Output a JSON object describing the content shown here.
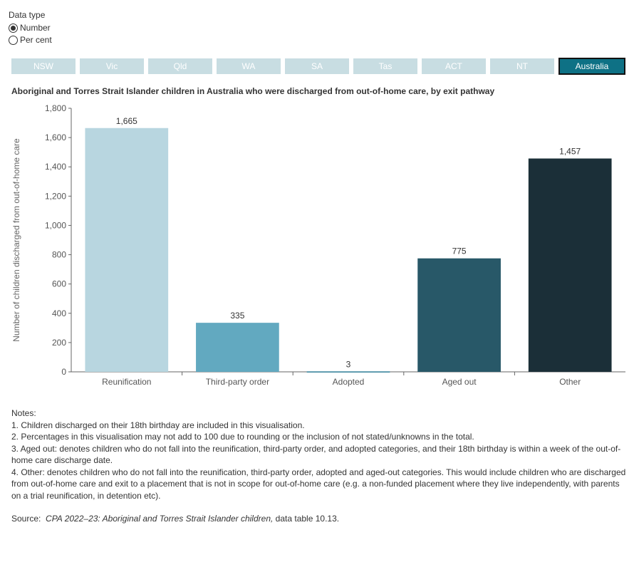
{
  "filters": {
    "label": "Data type",
    "options": [
      {
        "label": "Number",
        "selected": true
      },
      {
        "label": "Per cent",
        "selected": false
      }
    ]
  },
  "tabs": [
    {
      "label": "NSW"
    },
    {
      "label": "Vic"
    },
    {
      "label": "Qld"
    },
    {
      "label": "WA"
    },
    {
      "label": "SA"
    },
    {
      "label": "Tas"
    },
    {
      "label": "ACT"
    },
    {
      "label": "NT"
    },
    {
      "label": "Australia",
      "active": true
    }
  ],
  "colors": {
    "tab_inactive": "#c8dde2",
    "tab_active": "#0e7185"
  },
  "chart_data": {
    "type": "bar",
    "title": "Aboriginal and Torres Strait Islander children in Australia who were discharged from out-of-home care, by exit pathway",
    "ylabel": "Number of children discharged from out-of-home care",
    "xlabel": "",
    "categories": [
      "Reunification",
      "Third-party order",
      "Adopted",
      "Aged out",
      "Other"
    ],
    "values": [
      1665,
      335,
      3,
      775,
      1457
    ],
    "data_labels": [
      "1,665",
      "335",
      "3",
      "775",
      "1,457"
    ],
    "colors": [
      "#b8d6e0",
      "#62a9c0",
      "#2d7d96",
      "#285868",
      "#1b2f38"
    ],
    "ylim": [
      0,
      1800
    ],
    "yticks": [
      0,
      200,
      400,
      600,
      800,
      1000,
      1200,
      1400,
      1600,
      1800
    ],
    "ytick_labels": [
      "0",
      "200",
      "400",
      "600",
      "800",
      "1,000",
      "1,200",
      "1,400",
      "1,600",
      "1,800"
    ],
    "grid": false
  },
  "notes": {
    "heading": "Notes:",
    "items": [
      "1. Children discharged on their 18th birthday are included in this visualisation.",
      "2. Percentages in this visualisation may not add to 100 due to rounding or the inclusion of not stated/unknowns in the total.",
      "3. Aged out: denotes children who do not fall into the reunification, third-party order, and adopted categories, and their 18th birthday is within a week of the out-of-home care discharge date.",
      "4. Other: denotes children who do not fall into the reunification, third-party order, adopted and aged-out categories. This would include children who are discharged from out-of-home care and exit to a placement that is not in scope for out-of-home care (e.g. a non-funded placement where they live independently, with parents on a trial reunification, in detention etc)."
    ],
    "source_prefix": "Source:",
    "source_title": "CPA 2022–23: Aboriginal and Torres Strait Islander children,",
    "source_suffix": "data table  10.13."
  }
}
